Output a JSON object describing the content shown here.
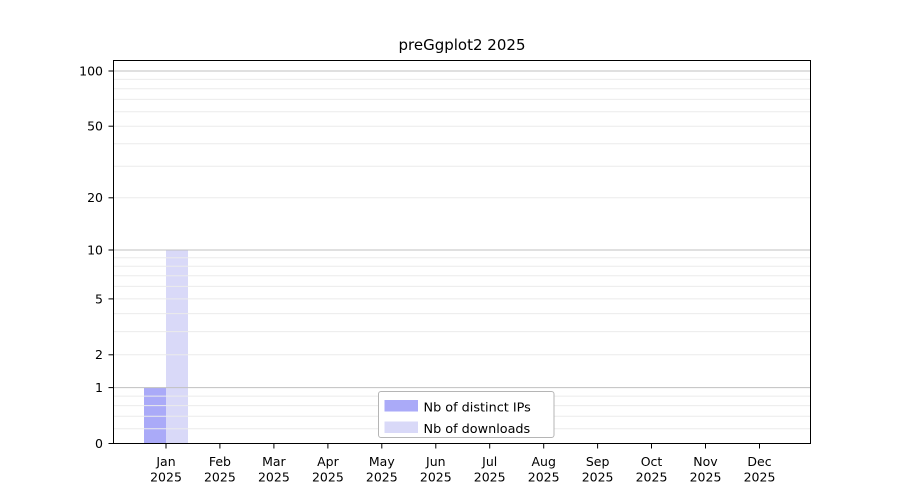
{
  "chart_data": {
    "type": "bar",
    "title": "preGgplot2 2025",
    "categories": [
      "Jan",
      "Feb",
      "Mar",
      "Apr",
      "May",
      "Jun",
      "Jul",
      "Aug",
      "Sep",
      "Oct",
      "Nov",
      "Dec"
    ],
    "xtick_year": "2025",
    "series": [
      {
        "name": "Nb of distinct IPs",
        "color": "#aaaaf8",
        "values": [
          1,
          0,
          0,
          0,
          0,
          0,
          0,
          0,
          0,
          0,
          0,
          0
        ]
      },
      {
        "name": "Nb of downloads",
        "color": "#d9d9f8",
        "values": [
          10,
          0,
          0,
          0,
          0,
          0,
          0,
          0,
          0,
          0,
          0,
          0
        ]
      }
    ],
    "xlabel": "",
    "ylabel": "",
    "yscale": "log1p",
    "ylim": [
      0,
      115
    ],
    "yticks": [
      0,
      1,
      2,
      5,
      10,
      20,
      50,
      100
    ],
    "grid": {
      "on": true,
      "major_at": [
        1,
        10,
        100
      ],
      "minor_at": [
        0.2,
        0.4,
        0.6,
        0.8,
        2,
        3,
        4,
        5,
        6,
        7,
        8,
        9,
        20,
        30,
        40,
        50,
        60,
        70,
        80,
        90
      ]
    },
    "legend": {
      "position": "lower center inside plot",
      "entries": [
        "Nb of distinct IPs",
        "Nb of downloads"
      ]
    }
  },
  "colors": {
    "background": "#ffffff",
    "bar_distinct_ips": "#aaaaf8",
    "bar_downloads": "#d9d9f8",
    "axis_line": "#000000",
    "tick_text": "#000000",
    "grid_major": "#c0c0c0",
    "grid_minor": "#ebebeb",
    "legend_border": "#b5b5b5",
    "legend_background": "#ffffff"
  }
}
